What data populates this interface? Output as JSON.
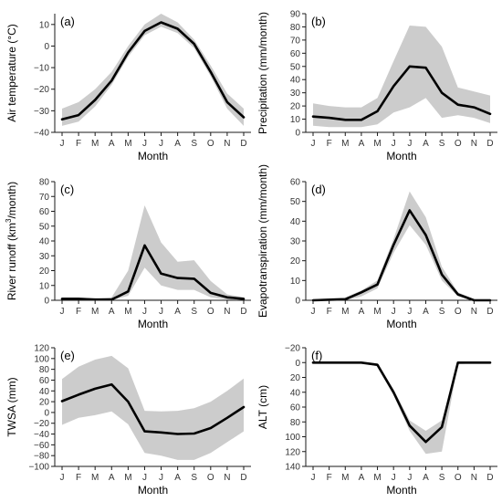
{
  "figure": {
    "background": "#ffffff",
    "band_color": "#cccccc",
    "line_color": "#000000"
  },
  "chart_data": [
    {
      "type": "area",
      "panel_label": "(a)",
      "xlabel": "Month",
      "ylabel": "Air temperature (°C)",
      "categories": [
        "J",
        "F",
        "M",
        "A",
        "M",
        "J",
        "J",
        "A",
        "S",
        "O",
        "N",
        "D"
      ],
      "ylim": [
        -40,
        15
      ],
      "yticks": [
        -40,
        -30,
        -20,
        -10,
        0,
        10
      ],
      "series": [
        {
          "values": [
            -34,
            -32,
            -25,
            -16,
            -3,
            7,
            11,
            8,
            1,
            -12,
            -26,
            -33
          ],
          "lower": [
            -37,
            -35,
            -28,
            -18,
            -5,
            5,
            9,
            6,
            -1,
            -14,
            -29,
            -37
          ],
          "upper": [
            -29,
            -26,
            -20,
            -12,
            0,
            10,
            15,
            11,
            3,
            -9,
            -22,
            -29
          ]
        }
      ]
    },
    {
      "type": "area",
      "panel_label": "(b)",
      "xlabel": "Month",
      "ylabel": "Precipitation (mm/month)",
      "categories": [
        "J",
        "F",
        "M",
        "A",
        "M",
        "J",
        "J",
        "A",
        "S",
        "O",
        "N",
        "D"
      ],
      "ylim": [
        0,
        90
      ],
      "yticks": [
        0,
        10,
        20,
        30,
        40,
        50,
        60,
        70,
        80,
        90
      ],
      "series": [
        {
          "values": [
            12,
            11,
            9.5,
            9.5,
            16,
            35,
            50,
            49,
            30,
            21,
            19,
            14
          ],
          "lower": [
            5,
            4,
            4,
            4,
            6,
            15,
            19,
            26,
            11,
            13,
            11,
            7
          ],
          "upper": [
            22,
            20,
            19,
            19,
            26,
            54,
            81,
            80,
            65,
            34,
            31,
            28
          ]
        }
      ]
    },
    {
      "type": "area",
      "panel_label": "(c)",
      "xlabel": "Month",
      "ylabel": "River runoff (km³/month)",
      "ylabel_main": "River runoff (km",
      "ylabel_sup": "3",
      "ylabel_end": "/month)",
      "categories": [
        "J",
        "F",
        "M",
        "A",
        "M",
        "J",
        "J",
        "A",
        "S",
        "O",
        "N",
        "D"
      ],
      "ylim": [
        0,
        80
      ],
      "yticks": [
        0,
        10,
        20,
        30,
        40,
        50,
        60,
        70,
        80
      ],
      "series": [
        {
          "values": [
            1,
            1,
            0.5,
            0.5,
            6,
            37,
            18,
            15,
            14.5,
            5,
            2,
            1
          ],
          "lower": [
            0.5,
            0.5,
            0.3,
            0.2,
            3,
            22,
            10,
            7,
            7,
            2,
            0.5,
            0.5
          ],
          "upper": [
            2,
            2,
            1,
            2,
            20,
            64,
            39,
            26,
            27,
            13,
            4,
            2
          ]
        }
      ]
    },
    {
      "type": "area",
      "panel_label": "(d)",
      "xlabel": "Month",
      "ylabel": "Evapotranspiration (mm/month)",
      "categories": [
        "J",
        "F",
        "M",
        "A",
        "M",
        "J",
        "J",
        "A",
        "S",
        "O",
        "N",
        "D"
      ],
      "ylim": [
        0,
        60
      ],
      "yticks": [
        0,
        10,
        20,
        30,
        40,
        50,
        60
      ],
      "series": [
        {
          "values": [
            0,
            0.3,
            0.5,
            4,
            8,
            28,
            45.5,
            33,
            13,
            3,
            0,
            0
          ],
          "lower": [
            0,
            0,
            0,
            2,
            6,
            24,
            38,
            28,
            10,
            2,
            0,
            0
          ],
          "upper": [
            0.5,
            1,
            1.5,
            5,
            10,
            31,
            55,
            42,
            17,
            4,
            0.5,
            0.5
          ]
        }
      ]
    },
    {
      "type": "area",
      "panel_label": "(e)",
      "xlabel": "Month",
      "ylabel": "TWSA (mm)",
      "categories": [
        "J",
        "F",
        "M",
        "A",
        "M",
        "J",
        "J",
        "A",
        "S",
        "O",
        "N",
        "D"
      ],
      "ylim": [
        -100,
        120
      ],
      "yticks": [
        -100,
        -80,
        -60,
        -40,
        -20,
        0,
        20,
        40,
        60,
        80,
        100,
        120
      ],
      "series": [
        {
          "values": [
            21,
            33,
            44,
            52,
            20,
            -35,
            -37,
            -40,
            -39,
            -29,
            -10,
            10
          ],
          "lower": [
            -23,
            -10,
            -5,
            2,
            -22,
            -75,
            -80,
            -88,
            -88,
            -75,
            -55,
            -35
          ],
          "upper": [
            62,
            85,
            98,
            105,
            82,
            3,
            2,
            3,
            8,
            20,
            40,
            63
          ]
        }
      ]
    },
    {
      "type": "area",
      "panel_label": "(f)",
      "xlabel": "Month",
      "ylabel": "ALT (cm)",
      "categories": [
        "J",
        "F",
        "M",
        "A",
        "M",
        "J",
        "J",
        "A",
        "S",
        "O",
        "N",
        "D"
      ],
      "ylim": [
        -20,
        140
      ],
      "y_inverted": true,
      "yticks": [
        -20,
        0,
        20,
        40,
        60,
        80,
        100,
        120,
        140
      ],
      "series": [
        {
          "values": [
            0,
            0,
            0,
            0,
            3,
            40,
            85,
            107,
            87,
            0,
            0,
            0
          ],
          "lower": [
            -1,
            -1,
            -1,
            -1,
            1,
            36,
            78,
            92,
            78,
            -1,
            -1,
            -1
          ],
          "upper": [
            1,
            1,
            1,
            1,
            5,
            44,
            92,
            123,
            120,
            2,
            1,
            1
          ]
        }
      ]
    }
  ]
}
